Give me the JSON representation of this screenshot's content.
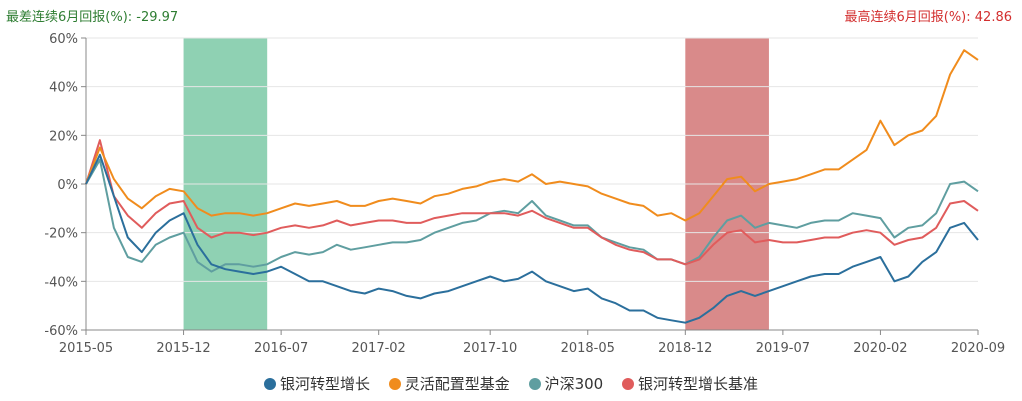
{
  "header": {
    "worst_label": "最差连续6月回报(%):",
    "worst_value": "-29.97",
    "best_label": "最高连续6月回报(%):",
    "best_value": "42.86"
  },
  "colors": {
    "worst_band": "#8fd1b3",
    "best_band": "#d98a8a",
    "axis": "#888888",
    "grid": "#e6e6e6"
  },
  "chart_data": {
    "type": "line",
    "ylim": [
      -60,
      60
    ],
    "yticks": [
      -60,
      -40,
      -20,
      0,
      20,
      40,
      60
    ],
    "ytick_labels": [
      "-60%",
      "-40%",
      "-20%",
      "0%",
      "20%",
      "40%",
      "60%"
    ],
    "xlim": [
      "2015-05",
      "2020-09"
    ],
    "xticks": [
      "2015-05",
      "2015-12",
      "2016-07",
      "2017-02",
      "2017-10",
      "2018-05",
      "2018-12",
      "2019-07",
      "2020-02",
      "2020-09"
    ],
    "grid": "horizontal",
    "legend_position": "bottom",
    "highlight_bands": [
      {
        "name": "worst_6m",
        "start": "2015-12",
        "end": "2016-06"
      },
      {
        "name": "best_6m",
        "start": "2018-12",
        "end": "2019-06"
      }
    ],
    "series": [
      {
        "name": "银河转型增长",
        "color": "#2b6f9c",
        "points": [
          [
            "2015-05",
            0
          ],
          [
            "2015-06",
            12
          ],
          [
            "2015-07",
            -5
          ],
          [
            "2015-08",
            -22
          ],
          [
            "2015-09",
            -28
          ],
          [
            "2015-10",
            -20
          ],
          [
            "2015-11",
            -15
          ],
          [
            "2015-12",
            -12
          ],
          [
            "2016-01",
            -25
          ],
          [
            "2016-02",
            -33
          ],
          [
            "2016-03",
            -35
          ],
          [
            "2016-04",
            -36
          ],
          [
            "2016-05",
            -37
          ],
          [
            "2016-06",
            -36
          ],
          [
            "2016-07",
            -34
          ],
          [
            "2016-08",
            -37
          ],
          [
            "2016-09",
            -40
          ],
          [
            "2016-10",
            -40
          ],
          [
            "2016-11",
            -42
          ],
          [
            "2016-12",
            -44
          ],
          [
            "2017-01",
            -45
          ],
          [
            "2017-02",
            -43
          ],
          [
            "2017-03",
            -44
          ],
          [
            "2017-04",
            -46
          ],
          [
            "2017-05",
            -47
          ],
          [
            "2017-06",
            -45
          ],
          [
            "2017-07",
            -44
          ],
          [
            "2017-08",
            -42
          ],
          [
            "2017-09",
            -40
          ],
          [
            "2017-10",
            -38
          ],
          [
            "2017-11",
            -40
          ],
          [
            "2017-12",
            -39
          ],
          [
            "2018-01",
            -36
          ],
          [
            "2018-02",
            -40
          ],
          [
            "2018-03",
            -42
          ],
          [
            "2018-04",
            -44
          ],
          [
            "2018-05",
            -43
          ],
          [
            "2018-06",
            -47
          ],
          [
            "2018-07",
            -49
          ],
          [
            "2018-08",
            -52
          ],
          [
            "2018-09",
            -52
          ],
          [
            "2018-10",
            -55
          ],
          [
            "2018-11",
            -56
          ],
          [
            "2018-12",
            -57
          ],
          [
            "2019-01",
            -55
          ],
          [
            "2019-02",
            -51
          ],
          [
            "2019-03",
            -46
          ],
          [
            "2019-04",
            -44
          ],
          [
            "2019-05",
            -46
          ],
          [
            "2019-06",
            -44
          ],
          [
            "2019-07",
            -42
          ],
          [
            "2019-08",
            -40
          ],
          [
            "2019-09",
            -38
          ],
          [
            "2019-10",
            -37
          ],
          [
            "2019-11",
            -37
          ],
          [
            "2019-12",
            -34
          ],
          [
            "2020-01",
            -32
          ],
          [
            "2020-02",
            -30
          ],
          [
            "2020-03",
            -40
          ],
          [
            "2020-04",
            -38
          ],
          [
            "2020-05",
            -32
          ],
          [
            "2020-06",
            -28
          ],
          [
            "2020-07",
            -18
          ],
          [
            "2020-08",
            -16
          ],
          [
            "2020-09",
            -23
          ]
        ]
      },
      {
        "name": "灵活配置型基金",
        "color": "#f08c1d",
        "points": [
          [
            "2015-05",
            0
          ],
          [
            "2015-06",
            15
          ],
          [
            "2015-07",
            2
          ],
          [
            "2015-08",
            -6
          ],
          [
            "2015-09",
            -10
          ],
          [
            "2015-10",
            -5
          ],
          [
            "2015-11",
            -2
          ],
          [
            "2015-12",
            -3
          ],
          [
            "2016-01",
            -10
          ],
          [
            "2016-02",
            -13
          ],
          [
            "2016-03",
            -12
          ],
          [
            "2016-04",
            -12
          ],
          [
            "2016-05",
            -13
          ],
          [
            "2016-06",
            -12
          ],
          [
            "2016-07",
            -10
          ],
          [
            "2016-08",
            -8
          ],
          [
            "2016-09",
            -9
          ],
          [
            "2016-10",
            -8
          ],
          [
            "2016-11",
            -7
          ],
          [
            "2016-12",
            -9
          ],
          [
            "2017-01",
            -9
          ],
          [
            "2017-02",
            -7
          ],
          [
            "2017-03",
            -6
          ],
          [
            "2017-04",
            -7
          ],
          [
            "2017-05",
            -8
          ],
          [
            "2017-06",
            -5
          ],
          [
            "2017-07",
            -4
          ],
          [
            "2017-08",
            -2
          ],
          [
            "2017-09",
            -1
          ],
          [
            "2017-10",
            1
          ],
          [
            "2017-11",
            2
          ],
          [
            "2017-12",
            1
          ],
          [
            "2018-01",
            4
          ],
          [
            "2018-02",
            0
          ],
          [
            "2018-03",
            1
          ],
          [
            "2018-04",
            0
          ],
          [
            "2018-05",
            -1
          ],
          [
            "2018-06",
            -4
          ],
          [
            "2018-07",
            -6
          ],
          [
            "2018-08",
            -8
          ],
          [
            "2018-09",
            -9
          ],
          [
            "2018-10",
            -13
          ],
          [
            "2018-11",
            -12
          ],
          [
            "2018-12",
            -15
          ],
          [
            "2019-01",
            -12
          ],
          [
            "2019-02",
            -5
          ],
          [
            "2019-03",
            2
          ],
          [
            "2019-04",
            3
          ],
          [
            "2019-05",
            -3
          ],
          [
            "2019-06",
            0
          ],
          [
            "2019-07",
            1
          ],
          [
            "2019-08",
            2
          ],
          [
            "2019-09",
            4
          ],
          [
            "2019-10",
            6
          ],
          [
            "2019-11",
            6
          ],
          [
            "2019-12",
            10
          ],
          [
            "2020-01",
            14
          ],
          [
            "2020-02",
            26
          ],
          [
            "2020-03",
            16
          ],
          [
            "2020-04",
            20
          ],
          [
            "2020-05",
            22
          ],
          [
            "2020-06",
            28
          ],
          [
            "2020-07",
            45
          ],
          [
            "2020-08",
            55
          ],
          [
            "2020-09",
            51
          ]
        ]
      },
      {
        "name": "沪深300",
        "color": "#5f9ea0",
        "points": [
          [
            "2015-05",
            0
          ],
          [
            "2015-06",
            10
          ],
          [
            "2015-07",
            -18
          ],
          [
            "2015-08",
            -30
          ],
          [
            "2015-09",
            -32
          ],
          [
            "2015-10",
            -25
          ],
          [
            "2015-11",
            -22
          ],
          [
            "2015-12",
            -20
          ],
          [
            "2016-01",
            -32
          ],
          [
            "2016-02",
            -36
          ],
          [
            "2016-03",
            -33
          ],
          [
            "2016-04",
            -33
          ],
          [
            "2016-05",
            -34
          ],
          [
            "2016-06",
            -33
          ],
          [
            "2016-07",
            -30
          ],
          [
            "2016-08",
            -28
          ],
          [
            "2016-09",
            -29
          ],
          [
            "2016-10",
            -28
          ],
          [
            "2016-11",
            -25
          ],
          [
            "2016-12",
            -27
          ],
          [
            "2017-01",
            -26
          ],
          [
            "2017-02",
            -25
          ],
          [
            "2017-03",
            -24
          ],
          [
            "2017-04",
            -24
          ],
          [
            "2017-05",
            -23
          ],
          [
            "2017-06",
            -20
          ],
          [
            "2017-07",
            -18
          ],
          [
            "2017-08",
            -16
          ],
          [
            "2017-09",
            -15
          ],
          [
            "2017-10",
            -12
          ],
          [
            "2017-11",
            -11
          ],
          [
            "2017-12",
            -12
          ],
          [
            "2018-01",
            -7
          ],
          [
            "2018-02",
            -13
          ],
          [
            "2018-03",
            -15
          ],
          [
            "2018-04",
            -17
          ],
          [
            "2018-05",
            -17
          ],
          [
            "2018-06",
            -22
          ],
          [
            "2018-07",
            -24
          ],
          [
            "2018-08",
            -26
          ],
          [
            "2018-09",
            -27
          ],
          [
            "2018-10",
            -31
          ],
          [
            "2018-11",
            -31
          ],
          [
            "2018-12",
            -33
          ],
          [
            "2019-01",
            -30
          ],
          [
            "2019-02",
            -22
          ],
          [
            "2019-03",
            -15
          ],
          [
            "2019-04",
            -13
          ],
          [
            "2019-05",
            -18
          ],
          [
            "2019-06",
            -16
          ],
          [
            "2019-07",
            -17
          ],
          [
            "2019-08",
            -18
          ],
          [
            "2019-09",
            -16
          ],
          [
            "2019-10",
            -15
          ],
          [
            "2019-11",
            -15
          ],
          [
            "2019-12",
            -12
          ],
          [
            "2020-01",
            -13
          ],
          [
            "2020-02",
            -14
          ],
          [
            "2020-03",
            -22
          ],
          [
            "2020-04",
            -18
          ],
          [
            "2020-05",
            -17
          ],
          [
            "2020-06",
            -12
          ],
          [
            "2020-07",
            0
          ],
          [
            "2020-08",
            1
          ],
          [
            "2020-09",
            -3
          ]
        ]
      },
      {
        "name": "银河转型增长基准",
        "color": "#e05c5c",
        "points": [
          [
            "2015-05",
            0
          ],
          [
            "2015-06",
            18
          ],
          [
            "2015-07",
            -5
          ],
          [
            "2015-08",
            -13
          ],
          [
            "2015-09",
            -18
          ],
          [
            "2015-10",
            -12
          ],
          [
            "2015-11",
            -8
          ],
          [
            "2015-12",
            -7
          ],
          [
            "2016-01",
            -18
          ],
          [
            "2016-02",
            -22
          ],
          [
            "2016-03",
            -20
          ],
          [
            "2016-04",
            -20
          ],
          [
            "2016-05",
            -21
          ],
          [
            "2016-06",
            -20
          ],
          [
            "2016-07",
            -18
          ],
          [
            "2016-08",
            -17
          ],
          [
            "2016-09",
            -18
          ],
          [
            "2016-10",
            -17
          ],
          [
            "2016-11",
            -15
          ],
          [
            "2016-12",
            -17
          ],
          [
            "2017-01",
            -16
          ],
          [
            "2017-02",
            -15
          ],
          [
            "2017-03",
            -15
          ],
          [
            "2017-04",
            -16
          ],
          [
            "2017-05",
            -16
          ],
          [
            "2017-06",
            -14
          ],
          [
            "2017-07",
            -13
          ],
          [
            "2017-08",
            -12
          ],
          [
            "2017-09",
            -12
          ],
          [
            "2017-10",
            -12
          ],
          [
            "2017-11",
            -12
          ],
          [
            "2017-12",
            -13
          ],
          [
            "2018-01",
            -11
          ],
          [
            "2018-02",
            -14
          ],
          [
            "2018-03",
            -16
          ],
          [
            "2018-04",
            -18
          ],
          [
            "2018-05",
            -18
          ],
          [
            "2018-06",
            -22
          ],
          [
            "2018-07",
            -25
          ],
          [
            "2018-08",
            -27
          ],
          [
            "2018-09",
            -28
          ],
          [
            "2018-10",
            -31
          ],
          [
            "2018-11",
            -31
          ],
          [
            "2018-12",
            -33
          ],
          [
            "2019-01",
            -31
          ],
          [
            "2019-02",
            -25
          ],
          [
            "2019-03",
            -20
          ],
          [
            "2019-04",
            -19
          ],
          [
            "2019-05",
            -24
          ],
          [
            "2019-06",
            -23
          ],
          [
            "2019-07",
            -24
          ],
          [
            "2019-08",
            -24
          ],
          [
            "2019-09",
            -23
          ],
          [
            "2019-10",
            -22
          ],
          [
            "2019-11",
            -22
          ],
          [
            "2019-12",
            -20
          ],
          [
            "2020-01",
            -19
          ],
          [
            "2020-02",
            -20
          ],
          [
            "2020-03",
            -25
          ],
          [
            "2020-04",
            -23
          ],
          [
            "2020-05",
            -22
          ],
          [
            "2020-06",
            -18
          ],
          [
            "2020-07",
            -8
          ],
          [
            "2020-08",
            -7
          ],
          [
            "2020-09",
            -11
          ]
        ]
      }
    ]
  }
}
